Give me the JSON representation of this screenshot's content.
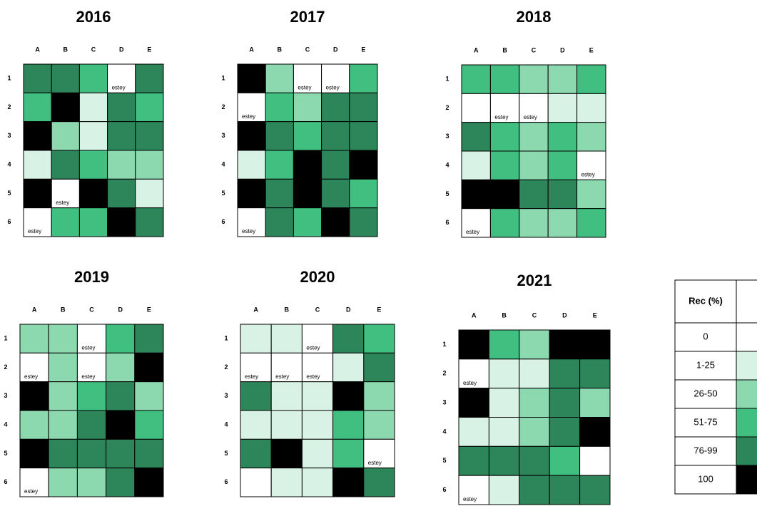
{
  "columns": [
    "A",
    "B",
    "C",
    "D",
    "E"
  ],
  "rows": [
    "1",
    "2",
    "3",
    "4",
    "5",
    "6"
  ],
  "panels": [
    {
      "title": "2016",
      "cells": [
        [
          "76-99",
          "76-99",
          "51-75",
          {
            "rec": "0",
            "text": "estey"
          },
          "76-99"
        ],
        [
          "51-75",
          "100",
          "1-25",
          "76-99",
          "51-75"
        ],
        [
          "100",
          "26-50",
          "1-25",
          "76-99",
          "76-99"
        ],
        [
          "1-25",
          "76-99",
          "51-75",
          "26-50",
          "26-50"
        ],
        [
          "100",
          {
            "rec": "0",
            "text": "estey"
          },
          "100",
          "76-99",
          "1-25"
        ],
        [
          {
            "rec": "0",
            "text": "estey"
          },
          "51-75",
          "51-75",
          "100",
          "76-99"
        ]
      ]
    },
    {
      "title": "2017",
      "cells": [
        [
          "100",
          "26-50",
          {
            "rec": "0",
            "text": "estey"
          },
          {
            "rec": "0",
            "text": "estey"
          },
          "51-75"
        ],
        [
          {
            "rec": "0",
            "text": "estey"
          },
          "51-75",
          "26-50",
          "76-99",
          "76-99"
        ],
        [
          "100",
          "76-99",
          "51-75",
          "76-99",
          "76-99"
        ],
        [
          "1-25",
          "51-75",
          "100",
          "76-99",
          "100"
        ],
        [
          "100",
          "76-99",
          "100",
          "76-99",
          "51-75"
        ],
        [
          {
            "rec": "0",
            "text": "estey"
          },
          "76-99",
          "51-75",
          "100",
          "76-99"
        ]
      ]
    },
    {
      "title": "2018",
      "cells": [
        [
          "51-75",
          "51-75",
          "26-50",
          "26-50",
          "51-75"
        ],
        [
          "0",
          {
            "rec": "0",
            "text": "estey"
          },
          {
            "rec": "0",
            "text": "estey"
          },
          "1-25",
          "1-25"
        ],
        [
          "76-99",
          "51-75",
          "26-50",
          "51-75",
          "26-50"
        ],
        [
          "1-25",
          "51-75",
          "26-50",
          "51-75",
          {
            "rec": "0",
            "text": "estey"
          }
        ],
        [
          "100",
          "100",
          "76-99",
          "76-99",
          "26-50"
        ],
        [
          {
            "rec": "0",
            "text": "estey"
          },
          "51-75",
          "26-50",
          "26-50",
          "51-75"
        ]
      ]
    },
    {
      "title": "2019",
      "cells": [
        [
          "26-50",
          "26-50",
          {
            "rec": "0",
            "text": "estey"
          },
          "51-75",
          "76-99"
        ],
        [
          {
            "rec": "0",
            "text": "estey"
          },
          "26-50",
          {
            "rec": "0",
            "text": "estey"
          },
          "26-50",
          "100"
        ],
        [
          "100",
          "26-50",
          "51-75",
          "76-99",
          "26-50"
        ],
        [
          "26-50",
          "26-50",
          "76-99",
          "100",
          "51-75"
        ],
        [
          "100",
          "76-99",
          "76-99",
          "76-99",
          "76-99"
        ],
        [
          {
            "rec": "0",
            "text": "estey"
          },
          "26-50",
          "26-50",
          "76-99",
          "100"
        ]
      ]
    },
    {
      "title": "2020",
      "cells": [
        [
          "1-25",
          "1-25",
          {
            "rec": "0",
            "text": "estey"
          },
          "76-99",
          "51-75"
        ],
        [
          {
            "rec": "0",
            "text": "estey"
          },
          {
            "rec": "0",
            "text": "estey"
          },
          {
            "rec": "0",
            "text": "estey"
          },
          "1-25",
          "76-99"
        ],
        [
          "76-99",
          "1-25",
          "1-25",
          "100",
          "26-50"
        ],
        [
          "1-25",
          "1-25",
          "1-25",
          "51-75",
          "26-50"
        ],
        [
          "76-99",
          "100",
          "1-25",
          "51-75",
          {
            "rec": "0",
            "text": "estey"
          }
        ],
        [
          "0",
          "1-25",
          "1-25",
          "100",
          "76-99"
        ]
      ]
    },
    {
      "title": "2021",
      "cells": [
        [
          "100",
          "51-75",
          "26-50",
          "100",
          "100"
        ],
        [
          {
            "rec": "0",
            "text": "estey"
          },
          "1-25",
          "1-25",
          "76-99",
          "76-99"
        ],
        [
          "100",
          "1-25",
          "26-50",
          "76-99",
          "26-50"
        ],
        [
          "1-25",
          "1-25",
          "26-50",
          "76-99",
          "100"
        ],
        [
          "76-99",
          "76-99",
          "76-99",
          "51-75",
          "0"
        ],
        [
          {
            "rec": "0",
            "text": "estey"
          },
          "1-25",
          "76-99",
          "76-99",
          "76-99"
        ]
      ]
    }
  ],
  "legend": {
    "header": "Rec (%)",
    "items": [
      {
        "label": "0",
        "color": "#ffffff"
      },
      {
        "label": "1-25",
        "color": "#d9f2e6"
      },
      {
        "label": "26-50",
        "color": "#8cd9b0"
      },
      {
        "label": "51-75",
        "color": "#40bf80"
      },
      {
        "label": "76-99",
        "color": "#2d8659"
      },
      {
        "label": "100",
        "color": "#000000"
      }
    ]
  }
}
